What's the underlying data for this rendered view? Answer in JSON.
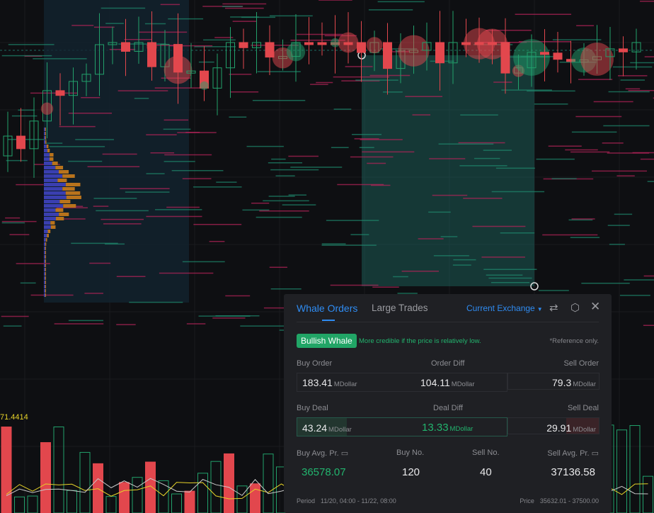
{
  "chart": {
    "volume_indicator_value": "71.4414",
    "colors": {
      "up": "#22a06b",
      "down": "#e2474d",
      "bg": "#0e0f12",
      "highlight": "#1f6b63"
    }
  },
  "panel": {
    "tabs": [
      {
        "label": "Whale Orders",
        "active": true
      },
      {
        "label": "Large Trades",
        "active": false
      }
    ],
    "exchange": "Current Exchange",
    "icons": [
      "swap-icon",
      "settings-icon",
      "close-icon"
    ],
    "badge": "Bullish Whale",
    "note": "More credible if the price is relatively low.",
    "reference": "*Reference only.",
    "orders": {
      "buy_label": "Buy Order",
      "diff_label": "Order Diff",
      "sell_label": "Sell Order",
      "buy": "183.41",
      "diff": "104.11",
      "sell": "79.3",
      "unit": "MDollar"
    },
    "deals": {
      "buy_label": "Buy Deal",
      "diff_label": "Deal Diff",
      "sell_label": "Sell Deal",
      "buy": "43.24",
      "diff": "13.33",
      "sell": "29.91",
      "unit": "MDollar"
    },
    "stats": {
      "buy_avg_label": "Buy Avg. Pr.",
      "buy_no_label": "Buy No.",
      "sell_no_label": "Sell No.",
      "sell_avg_label": "Sell Avg. Pr.",
      "buy_avg": "36578.07",
      "buy_no": "120",
      "sell_no": "40",
      "sell_avg": "37136.58"
    },
    "period_label": "Period",
    "period": "11/20, 04:00 - 11/22, 08:00",
    "price_label": "Price",
    "price": "35632.01 - 37500.00"
  }
}
